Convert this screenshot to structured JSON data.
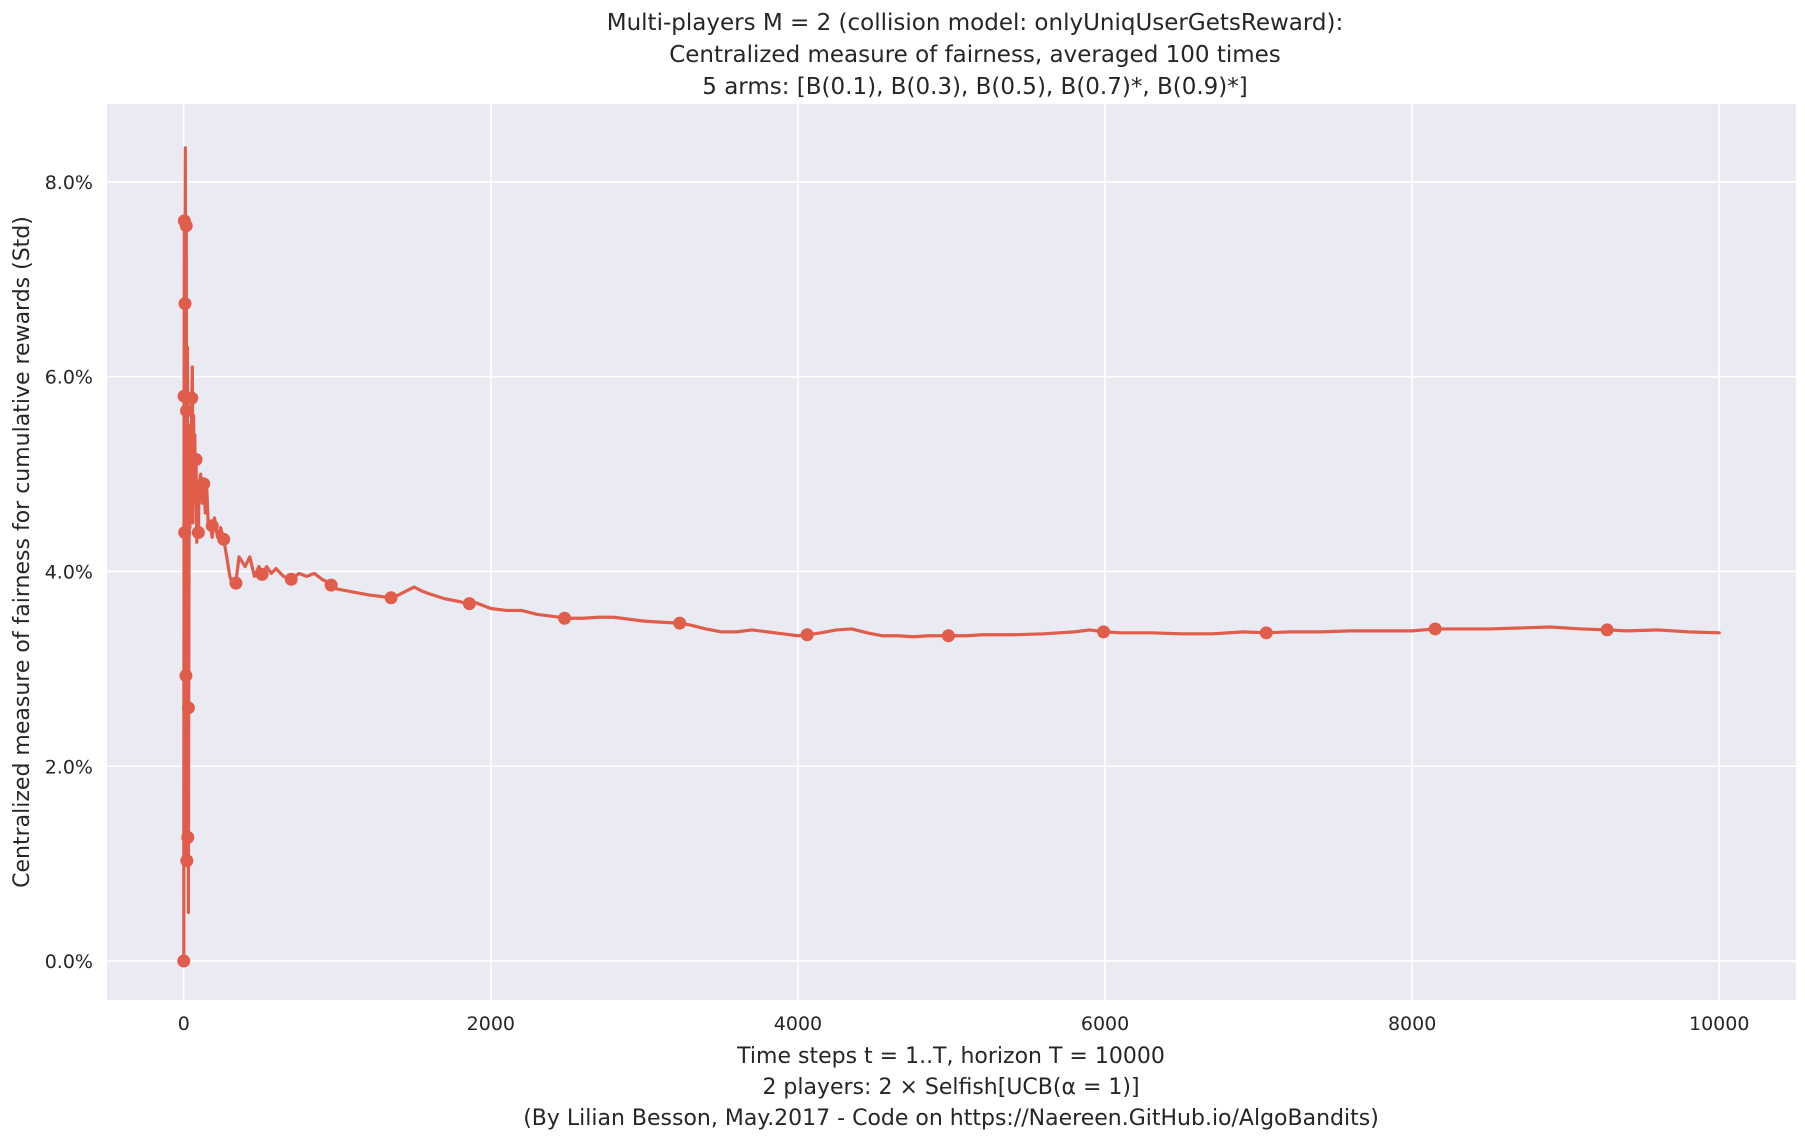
{
  "chart_data": {
    "type": "line",
    "title": [
      "Multi-players M = 2 (collision model: onlyUniqUserGetsReward):",
      "Centralized measure of fairness, averaged 100 times",
      "5 arms: [B(0.1), B(0.3), B(0.5), B(0.7)*, B(0.9)*]"
    ],
    "xlabel": [
      "Time steps t = 1..T, horizon T = 10000",
      "2 players: 2 × Selfish[UCB(α = 1)]",
      "(By Lilian Besson, May.2017 - Code on https://Naereen.GitHub.io/AlgoBandits)"
    ],
    "ylabel": "Centralized measure of fairness for cumulative rewards (Std)",
    "xlim": [
      -500,
      10500
    ],
    "ylim": [
      -0.4,
      8.8
    ],
    "x_ticks": [
      0,
      2000,
      4000,
      6000,
      8000,
      10000
    ],
    "x_tick_labels": [
      "0",
      "2000",
      "4000",
      "6000",
      "8000",
      "10000"
    ],
    "y_ticks": [
      0,
      2,
      4,
      6,
      8
    ],
    "y_tick_labels": [
      "0.0%",
      "2.0%",
      "4.0%",
      "6.0%",
      "8.0%"
    ],
    "grid": true,
    "background": "#eaeaf2",
    "series": [
      {
        "color": "#e05c4b",
        "line": [
          [
            0,
            0.0
          ],
          [
            2,
            5.8
          ],
          [
            4,
            7.6
          ],
          [
            6,
            4.4
          ],
          [
            8,
            6.8
          ],
          [
            10,
            8.35
          ],
          [
            12,
            5.7
          ],
          [
            14,
            2.9
          ],
          [
            16,
            7.55
          ],
          [
            18,
            5.65
          ],
          [
            20,
            1.05
          ],
          [
            22,
            3.0
          ],
          [
            24,
            6.3
          ],
          [
            26,
            1.3
          ],
          [
            28,
            4.4
          ],
          [
            30,
            0.5
          ],
          [
            32,
            2.6
          ],
          [
            34,
            4.0
          ],
          [
            36,
            5.3
          ],
          [
            40,
            4.45
          ],
          [
            44,
            5.5
          ],
          [
            48,
            5.0
          ],
          [
            52,
            5.78
          ],
          [
            56,
            6.1
          ],
          [
            60,
            4.5
          ],
          [
            64,
            5.6
          ],
          [
            68,
            5.0
          ],
          [
            72,
            5.4
          ],
          [
            76,
            4.7
          ],
          [
            80,
            5.15
          ],
          [
            85,
            4.3
          ],
          [
            90,
            4.9
          ],
          [
            95,
            4.4
          ],
          [
            100,
            4.9
          ],
          [
            110,
            5.0
          ],
          [
            120,
            4.7
          ],
          [
            130,
            4.95
          ],
          [
            140,
            4.6
          ],
          [
            150,
            4.85
          ],
          [
            160,
            4.45
          ],
          [
            170,
            4.5
          ],
          [
            185,
            4.35
          ],
          [
            200,
            4.55
          ],
          [
            220,
            4.35
          ],
          [
            240,
            4.45
          ],
          [
            260,
            4.33
          ],
          [
            280,
            4.15
          ],
          [
            300,
            3.95
          ],
          [
            320,
            3.85
          ],
          [
            340,
            3.9
          ],
          [
            360,
            4.15
          ],
          [
            380,
            4.1
          ],
          [
            400,
            4.05
          ],
          [
            430,
            4.15
          ],
          [
            460,
            3.95
          ],
          [
            490,
            4.05
          ],
          [
            510,
            3.97
          ],
          [
            540,
            4.05
          ],
          [
            570,
            3.98
          ],
          [
            600,
            4.03
          ],
          [
            650,
            3.95
          ],
          [
            700,
            3.92
          ],
          [
            750,
            3.98
          ],
          [
            800,
            3.95
          ],
          [
            850,
            3.98
          ],
          [
            900,
            3.92
          ],
          [
            950,
            3.88
          ],
          [
            1000,
            3.82
          ],
          [
            1100,
            3.79
          ],
          [
            1200,
            3.76
          ],
          [
            1300,
            3.74
          ],
          [
            1350,
            3.73
          ],
          [
            1400,
            3.76
          ],
          [
            1450,
            3.8
          ],
          [
            1500,
            3.84
          ],
          [
            1550,
            3.8
          ],
          [
            1600,
            3.77
          ],
          [
            1700,
            3.72
          ],
          [
            1800,
            3.69
          ],
          [
            1860,
            3.66
          ],
          [
            1900,
            3.68
          ],
          [
            2000,
            3.62
          ],
          [
            2100,
            3.6
          ],
          [
            2200,
            3.6
          ],
          [
            2300,
            3.56
          ],
          [
            2400,
            3.54
          ],
          [
            2500,
            3.52
          ],
          [
            2600,
            3.52
          ],
          [
            2700,
            3.53
          ],
          [
            2800,
            3.53
          ],
          [
            2900,
            3.51
          ],
          [
            3000,
            3.49
          ],
          [
            3100,
            3.48
          ],
          [
            3230,
            3.47
          ],
          [
            3300,
            3.45
          ],
          [
            3400,
            3.41
          ],
          [
            3500,
            3.38
          ],
          [
            3600,
            3.38
          ],
          [
            3700,
            3.4
          ],
          [
            3800,
            3.38
          ],
          [
            3900,
            3.36
          ],
          [
            4000,
            3.34
          ],
          [
            4060,
            3.35
          ],
          [
            4150,
            3.37
          ],
          [
            4250,
            3.4
          ],
          [
            4350,
            3.41
          ],
          [
            4450,
            3.37
          ],
          [
            4550,
            3.34
          ],
          [
            4650,
            3.34
          ],
          [
            4750,
            3.33
          ],
          [
            4850,
            3.34
          ],
          [
            4980,
            3.34
          ],
          [
            5100,
            3.34
          ],
          [
            5200,
            3.35
          ],
          [
            5400,
            3.35
          ],
          [
            5600,
            3.36
          ],
          [
            5800,
            3.38
          ],
          [
            5900,
            3.4
          ],
          [
            6000,
            3.38
          ],
          [
            6100,
            3.37
          ],
          [
            6300,
            3.37
          ],
          [
            6500,
            3.36
          ],
          [
            6700,
            3.36
          ],
          [
            6900,
            3.38
          ],
          [
            7050,
            3.37
          ],
          [
            7200,
            3.38
          ],
          [
            7400,
            3.38
          ],
          [
            7600,
            3.39
          ],
          [
            7800,
            3.39
          ],
          [
            8000,
            3.39
          ],
          [
            8150,
            3.41
          ],
          [
            8300,
            3.41
          ],
          [
            8500,
            3.41
          ],
          [
            8700,
            3.42
          ],
          [
            8900,
            3.43
          ],
          [
            9100,
            3.41
          ],
          [
            9270,
            3.4
          ],
          [
            9400,
            3.39
          ],
          [
            9600,
            3.4
          ],
          [
            9800,
            3.38
          ],
          [
            10000,
            3.37
          ]
        ],
        "markers": [
          [
            0,
            0.0
          ],
          [
            2,
            5.8
          ],
          [
            4,
            7.6
          ],
          [
            6,
            4.4
          ],
          [
            8,
            6.75
          ],
          [
            14,
            2.93
          ],
          [
            16,
            7.55
          ],
          [
            18,
            5.65
          ],
          [
            20,
            1.03
          ],
          [
            26,
            1.27
          ],
          [
            30,
            2.6
          ],
          [
            52,
            5.78
          ],
          [
            80,
            5.15
          ],
          [
            95,
            4.4
          ],
          [
            130,
            4.9
          ],
          [
            185,
            4.47
          ],
          [
            260,
            4.33
          ],
          [
            340,
            3.88
          ],
          [
            510,
            3.97
          ],
          [
            700,
            3.92
          ],
          [
            960,
            3.86
          ],
          [
            1350,
            3.73
          ],
          [
            1860,
            3.67
          ],
          [
            2480,
            3.52
          ],
          [
            3230,
            3.47
          ],
          [
            4060,
            3.35
          ],
          [
            4980,
            3.34
          ],
          [
            5990,
            3.38
          ],
          [
            7050,
            3.37
          ],
          [
            8150,
            3.41
          ],
          [
            9270,
            3.4
          ]
        ]
      }
    ]
  }
}
